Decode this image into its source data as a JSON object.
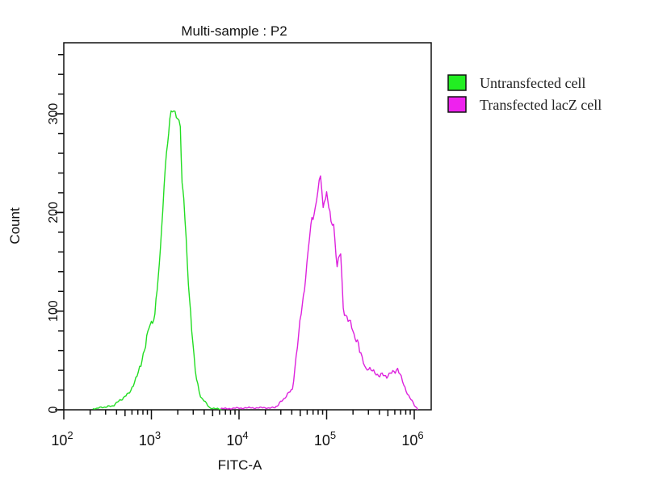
{
  "chart_data": {
    "type": "line",
    "title": "Multi-sample : P2",
    "xlabel": "FITC-A",
    "ylabel": "Count",
    "xscale": "log",
    "xlim_log10": [
      2,
      6.19
    ],
    "ylim": [
      0,
      372
    ],
    "x_ticks": [
      {
        "base": "10",
        "exp": "2",
        "log10": 2
      },
      {
        "base": "10",
        "exp": "3",
        "log10": 3
      },
      {
        "base": "10",
        "exp": "4",
        "log10": 4
      },
      {
        "base": "10",
        "exp": "5",
        "log10": 5
      },
      {
        "base": "10",
        "exp": "6",
        "log10": 6
      }
    ],
    "y_ticks": [
      {
        "label": "0",
        "value": 0
      },
      {
        "label": "100",
        "value": 100
      },
      {
        "label": "200",
        "value": 200
      },
      {
        "label": "300",
        "value": 300
      }
    ],
    "y_minor_step": 20,
    "legend_position": "right",
    "series": [
      {
        "name": "Untransfected cell",
        "color": "#22dd22",
        "x_log10": [
          2.33,
          2.56,
          2.75,
          2.88,
          2.96,
          3.04,
          3.09,
          3.13,
          3.16,
          3.21,
          3.24,
          3.3,
          3.33,
          3.35,
          3.37,
          3.41,
          3.46,
          3.5,
          3.56,
          3.67,
          3.8
        ],
        "counts": [
          1,
          4,
          17,
          44,
          80,
          97,
          148,
          202,
          248,
          295,
          302,
          295,
          287,
          230,
          214,
          148,
          80,
          40,
          13,
          2,
          0
        ]
      },
      {
        "name": "Transfected lacZ cell",
        "color": "#dd22dd",
        "x_log10": [
          3.79,
          4.1,
          4.41,
          4.5,
          4.61,
          4.68,
          4.71,
          4.76,
          4.82,
          4.87,
          4.93,
          4.96,
          5.0,
          5.05,
          5.08,
          5.12,
          5.16,
          5.19,
          5.3,
          5.39,
          5.45,
          5.58,
          5.7,
          5.81,
          5.88,
          5.95,
          6.04
        ],
        "counts": [
          1,
          2,
          2,
          10,
          21,
          76,
          97,
          133,
          188,
          205,
          237,
          205,
          221,
          191,
          188,
          145,
          158,
          103,
          80,
          58,
          42,
          36,
          34,
          42,
          25,
          12,
          0
        ]
      }
    ]
  }
}
